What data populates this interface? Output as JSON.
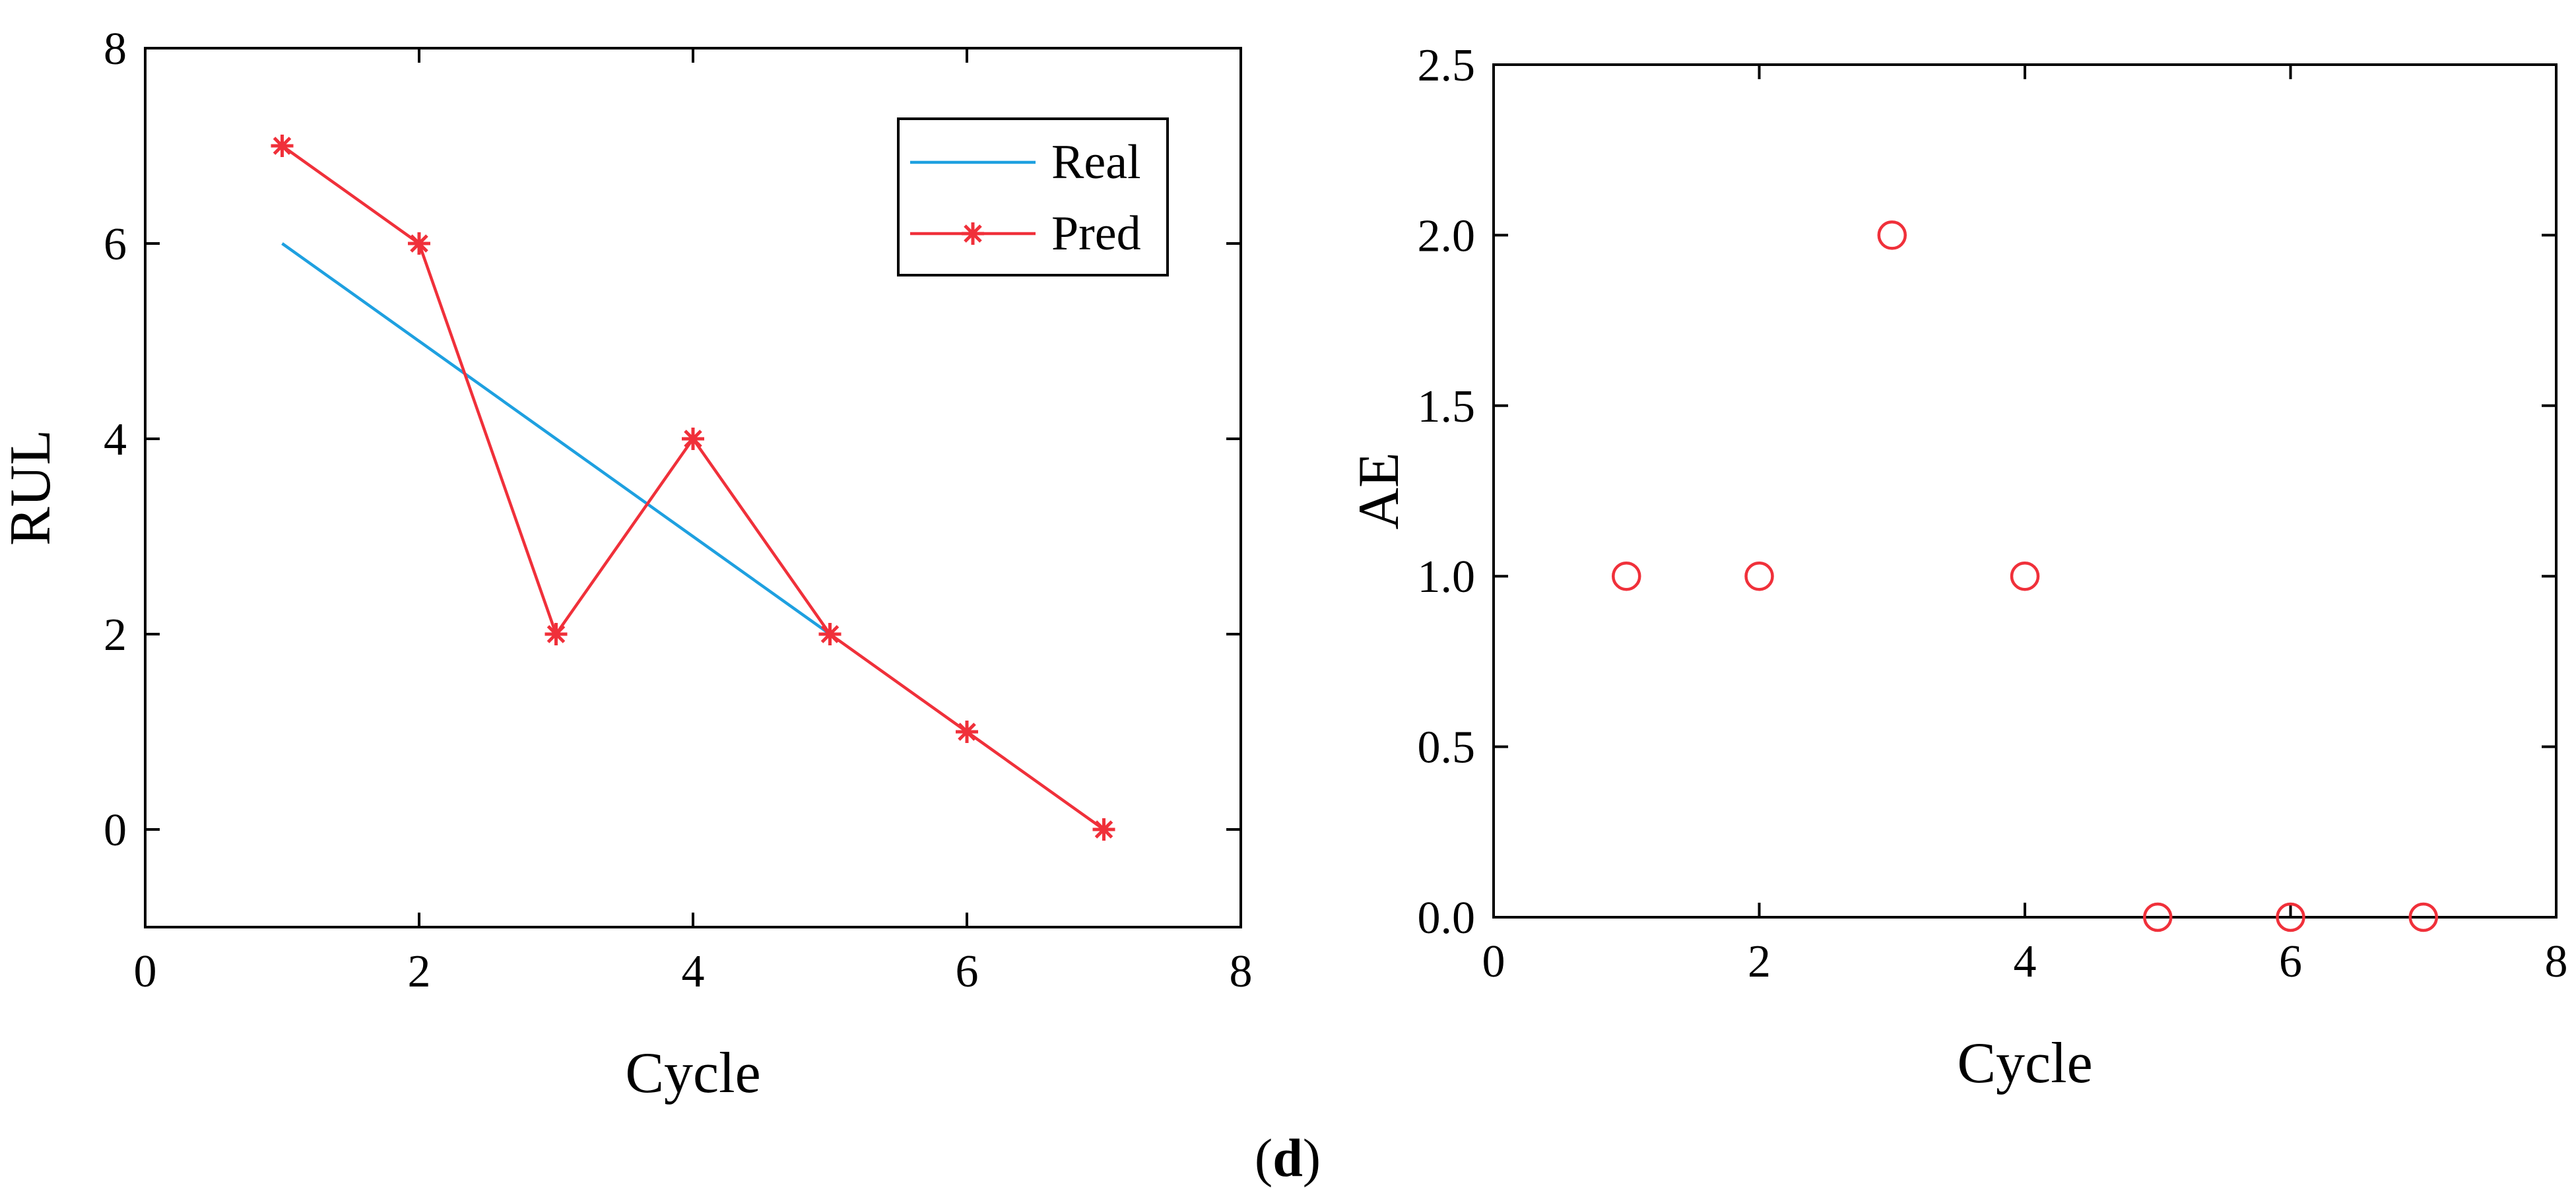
{
  "panel_label": {
    "open": "(",
    "letter": "d",
    "close": ")"
  },
  "colors": {
    "real": "#1ea0e0",
    "pred": "#f0303a",
    "ae": "#f0303a",
    "axis": "#000000"
  },
  "chart_data": [
    {
      "type": "line",
      "xlabel": "Cycle",
      "ylabel": "RUL",
      "xlim": [
        0,
        8
      ],
      "ylim": [
        -1,
        8
      ],
      "xticks": [
        0,
        2,
        4,
        6,
        8
      ],
      "yticks": [
        0,
        2,
        4,
        6,
        8
      ],
      "grid": false,
      "legend_position": "top-right",
      "series": [
        {
          "name": "Real",
          "marker": "none",
          "x": [
            1,
            2,
            3,
            4,
            5
          ],
          "values": [
            6,
            5,
            4,
            3,
            2
          ]
        },
        {
          "name": "Pred",
          "marker": "asterisk",
          "x": [
            1,
            2,
            3,
            4,
            5,
            6,
            7
          ],
          "values": [
            7,
            6,
            2,
            4,
            2,
            1,
            0
          ]
        }
      ]
    },
    {
      "type": "scatter",
      "xlabel": "Cycle",
      "ylabel": "AE",
      "xlim": [
        0,
        8
      ],
      "ylim": [
        0,
        2.5
      ],
      "xticks": [
        0,
        2,
        4,
        6,
        8
      ],
      "yticks": [
        0.0,
        0.5,
        1.0,
        1.5,
        2.0,
        2.5
      ],
      "ytick_decimals": 1,
      "grid": false,
      "series": [
        {
          "name": "AE",
          "marker": "open-circle",
          "x": [
            1,
            2,
            3,
            4,
            5,
            6,
            7
          ],
          "values": [
            1,
            1,
            2,
            1,
            0,
            0,
            0
          ]
        }
      ]
    }
  ]
}
